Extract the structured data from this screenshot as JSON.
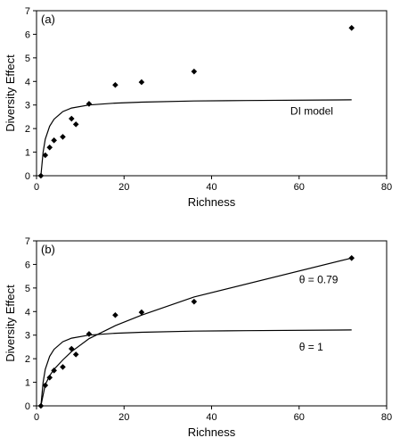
{
  "chart_data": [
    {
      "type": "scatter",
      "panel_label": "(a)",
      "xlabel": "Richness",
      "ylabel": "Diversity Effect",
      "xlim": [
        0,
        80
      ],
      "ylim": [
        0,
        7
      ],
      "xticks": [
        0,
        20,
        40,
        60,
        80
      ],
      "yticks": [
        0,
        1,
        2,
        3,
        4,
        5,
        6,
        7
      ],
      "grid": false,
      "points": [
        {
          "x": 1,
          "y": 0.0
        },
        {
          "x": 2,
          "y": 0.87
        },
        {
          "x": 3,
          "y": 1.2
        },
        {
          "x": 4,
          "y": 1.5
        },
        {
          "x": 6,
          "y": 1.65
        },
        {
          "x": 8,
          "y": 2.42
        },
        {
          "x": 9,
          "y": 2.18
        },
        {
          "x": 12,
          "y": 3.05
        },
        {
          "x": 18,
          "y": 3.85
        },
        {
          "x": 24,
          "y": 3.97
        },
        {
          "x": 36,
          "y": 4.42
        },
        {
          "x": 72,
          "y": 6.27
        }
      ],
      "series": [
        {
          "name": "DI model",
          "points": [
            {
              "x": 1,
              "y": 0.0
            },
            {
              "x": 1.5,
              "y": 1.0
            },
            {
              "x": 2,
              "y": 1.55
            },
            {
              "x": 3,
              "y": 2.1
            },
            {
              "x": 4,
              "y": 2.4
            },
            {
              "x": 6,
              "y": 2.72
            },
            {
              "x": 8,
              "y": 2.87
            },
            {
              "x": 12,
              "y": 3.0
            },
            {
              "x": 18,
              "y": 3.08
            },
            {
              "x": 24,
              "y": 3.12
            },
            {
              "x": 36,
              "y": 3.17
            },
            {
              "x": 48,
              "y": 3.19
            },
            {
              "x": 72,
              "y": 3.22
            }
          ]
        }
      ],
      "annotations": [
        {
          "text": "DI model",
          "x": 58,
          "y": 2.6
        }
      ]
    },
    {
      "type": "scatter",
      "panel_label": "(b)",
      "xlabel": "Richness",
      "ylabel": "Diversity Effect",
      "xlim": [
        0,
        80
      ],
      "ylim": [
        0,
        7
      ],
      "xticks": [
        0,
        20,
        40,
        60,
        80
      ],
      "yticks": [
        0,
        1,
        2,
        3,
        4,
        5,
        6,
        7
      ],
      "grid": false,
      "points": [
        {
          "x": 1,
          "y": 0.0
        },
        {
          "x": 2,
          "y": 0.87
        },
        {
          "x": 3,
          "y": 1.2
        },
        {
          "x": 4,
          "y": 1.5
        },
        {
          "x": 6,
          "y": 1.65
        },
        {
          "x": 8,
          "y": 2.42
        },
        {
          "x": 9,
          "y": 2.18
        },
        {
          "x": 12,
          "y": 3.05
        },
        {
          "x": 18,
          "y": 3.85
        },
        {
          "x": 24,
          "y": 3.97
        },
        {
          "x": 36,
          "y": 4.42
        },
        {
          "x": 72,
          "y": 6.27
        }
      ],
      "series": [
        {
          "name": "θ = 0.79",
          "points": [
            {
              "x": 1,
              "y": 0.0
            },
            {
              "x": 2,
              "y": 0.9
            },
            {
              "x": 3,
              "y": 1.28
            },
            {
              "x": 4,
              "y": 1.55
            },
            {
              "x": 6,
              "y": 1.95
            },
            {
              "x": 8,
              "y": 2.3
            },
            {
              "x": 12,
              "y": 2.85
            },
            {
              "x": 18,
              "y": 3.4
            },
            {
              "x": 24,
              "y": 3.85
            },
            {
              "x": 36,
              "y": 4.62
            },
            {
              "x": 72,
              "y": 6.27
            }
          ]
        },
        {
          "name": "θ = 1",
          "points": [
            {
              "x": 1,
              "y": 0.0
            },
            {
              "x": 1.5,
              "y": 1.0
            },
            {
              "x": 2,
              "y": 1.55
            },
            {
              "x": 3,
              "y": 2.1
            },
            {
              "x": 4,
              "y": 2.4
            },
            {
              "x": 6,
              "y": 2.72
            },
            {
              "x": 8,
              "y": 2.87
            },
            {
              "x": 12,
              "y": 3.0
            },
            {
              "x": 18,
              "y": 3.08
            },
            {
              "x": 24,
              "y": 3.12
            },
            {
              "x": 36,
              "y": 3.17
            },
            {
              "x": 48,
              "y": 3.19
            },
            {
              "x": 72,
              "y": 3.22
            }
          ]
        }
      ],
      "annotations": [
        {
          "text": "θ = 0.79",
          "x": 60,
          "y": 5.2
        },
        {
          "text": "θ = 1",
          "x": 60,
          "y": 2.35
        }
      ]
    }
  ]
}
